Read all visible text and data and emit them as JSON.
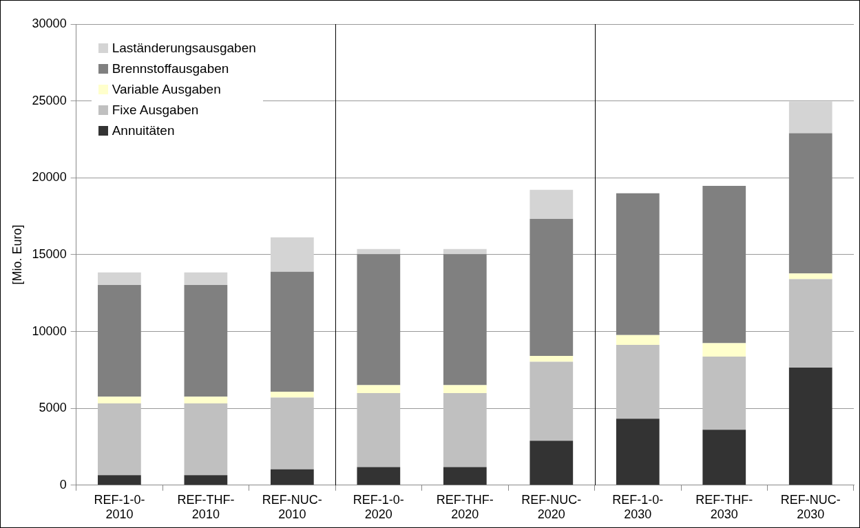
{
  "chart_data": {
    "type": "bar",
    "stacked": true,
    "ylabel": "[Mio. Euro]",
    "categories": [
      "REF-1-0-2010",
      "REF-THF-2010",
      "REF-NUC-2010",
      "REF-1-0-2020",
      "REF-THF-2020",
      "REF-NUC-2020",
      "REF-1-0-2030",
      "REF-THF-2030",
      "REF-NUC-2030"
    ],
    "series": [
      {
        "name": "Annuitäten",
        "color": "#333333",
        "values": [
          650,
          650,
          1030,
          1180,
          1180,
          2890,
          4320,
          3610,
          7650
        ]
      },
      {
        "name": "Fixe Ausgaben",
        "color": "#c0c0c0",
        "values": [
          4670,
          4670,
          4670,
          4810,
          4810,
          5140,
          4810,
          4760,
          5760
        ]
      },
      {
        "name": "Variable Ausgaben",
        "color": "#ffffcc",
        "values": [
          440,
          440,
          380,
          520,
          520,
          380,
          640,
          870,
          360
        ]
      },
      {
        "name": "Brennstoffausgaben",
        "color": "#808080",
        "values": [
          7270,
          7270,
          7810,
          8520,
          8520,
          8910,
          9220,
          10230,
          9130
        ]
      },
      {
        "name": "Laständerungsausgaben",
        "color": "#d4d4d4",
        "values": [
          810,
          810,
          2240,
          340,
          340,
          1900,
          0,
          0,
          2060
        ]
      }
    ],
    "ylim": [
      0,
      30000
    ],
    "yticks": [
      0,
      5000,
      10000,
      15000,
      20000,
      25000,
      30000
    ],
    "grid": "y",
    "legend": "top left"
  }
}
